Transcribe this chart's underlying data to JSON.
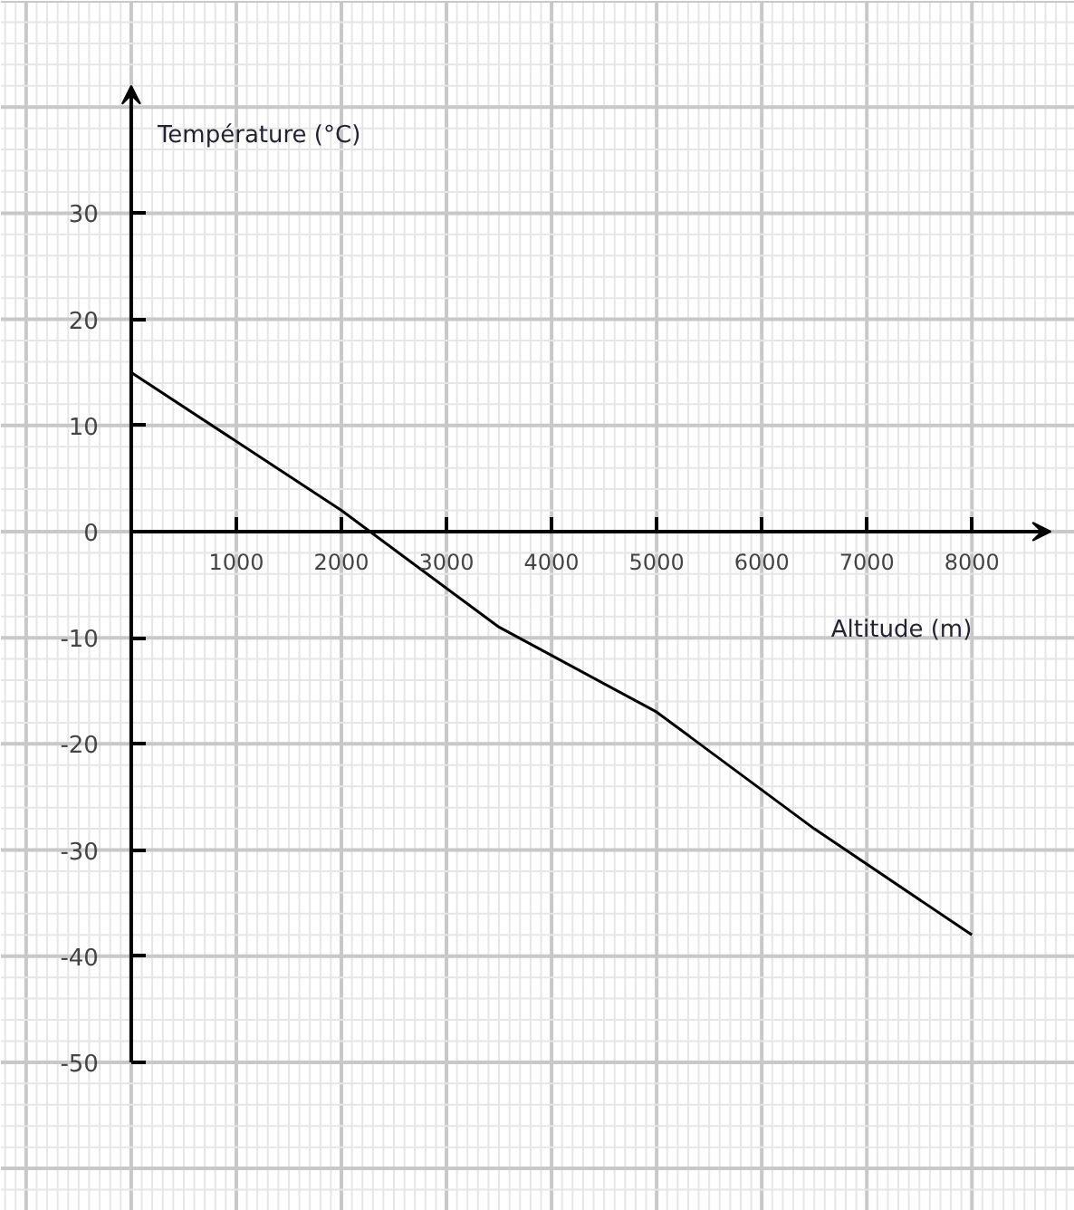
{
  "chart_data": {
    "type": "line",
    "xlabel": "Altitude (m)",
    "ylabel": "Température (°C)",
    "x": [
      0,
      2000,
      3500,
      5000,
      6500,
      8000
    ],
    "series": [
      {
        "color": "#000000",
        "values": [
          15,
          2,
          -9,
          -17,
          -28,
          -38
        ]
      }
    ],
    "xlim": [
      -1240,
      8980
    ],
    "ylim": [
      -64,
      50
    ],
    "xticks": [
      1000,
      2000,
      3000,
      4000,
      5000,
      6000,
      7000,
      8000
    ],
    "yticks": [
      -50,
      -40,
      -30,
      -20,
      -10,
      0,
      10,
      20,
      30
    ],
    "grid": true,
    "line_style": "solid"
  }
}
